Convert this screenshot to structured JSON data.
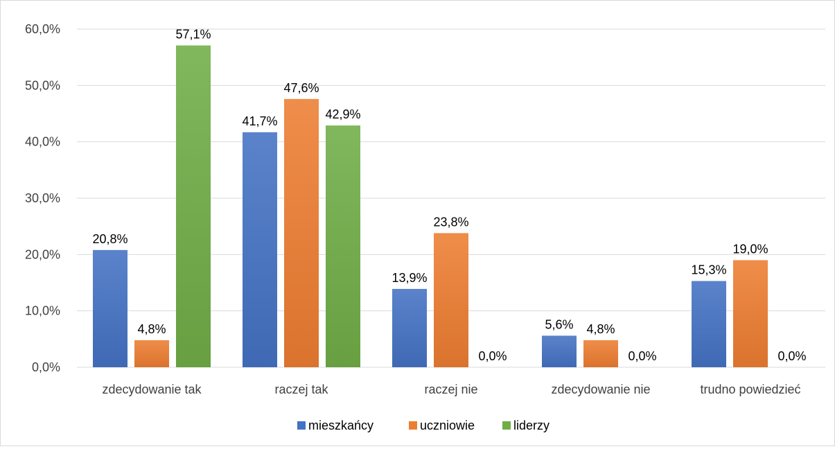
{
  "chart_data": {
    "type": "bar",
    "title": "",
    "xlabel": "",
    "ylabel": "",
    "categories": [
      "zdecydowanie tak",
      "raczej tak",
      "raczej nie",
      "zdecydowanie nie",
      "trudno powiedzieć"
    ],
    "series": [
      {
        "name": "mieszkańcy",
        "color": "#4472C4",
        "values": [
          20.8,
          41.7,
          13.9,
          5.6,
          15.3
        ],
        "labels": [
          "20,8%",
          "41,7%",
          "13,9%",
          "5,6%",
          "15,3%"
        ]
      },
      {
        "name": "uczniowie",
        "color": "#ED7D31",
        "values": [
          4.8,
          47.6,
          23.8,
          4.8,
          19.0
        ],
        "labels": [
          "4,8%",
          "47,6%",
          "23,8%",
          "4,8%",
          "19,0%"
        ]
      },
      {
        "name": "liderzy",
        "color": "#70AD47",
        "values": [
          57.1,
          42.9,
          0.0,
          0.0,
          0.0
        ],
        "labels": [
          "57,1%",
          "42,9%",
          "0,0%",
          "0,0%",
          "0,0%"
        ]
      }
    ],
    "ylim": [
      0,
      60
    ],
    "yticks": [
      0,
      10,
      20,
      30,
      40,
      50,
      60
    ],
    "ytick_labels": [
      "0,0%",
      "10,0%",
      "20,0%",
      "30,0%",
      "40,0%",
      "50,0%",
      "60,0%"
    ],
    "grid": true,
    "legend_position": "bottom"
  }
}
